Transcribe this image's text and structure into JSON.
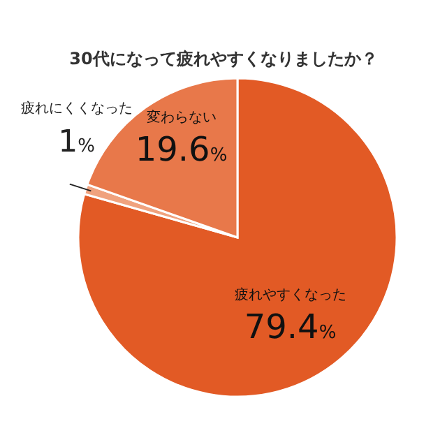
{
  "chart_data": {
    "type": "pie",
    "title": "30代になって疲れやすくなりましたか？",
    "categories": [
      "疲れやすくなった",
      "疲れにくくなった",
      "変わらない"
    ],
    "values": [
      79.4,
      1,
      19.6
    ],
    "colors": [
      "#e25a25",
      "#f0a27e",
      "#e8784a"
    ],
    "value_labels": [
      "79.4%",
      "1%",
      "19.6%"
    ]
  }
}
